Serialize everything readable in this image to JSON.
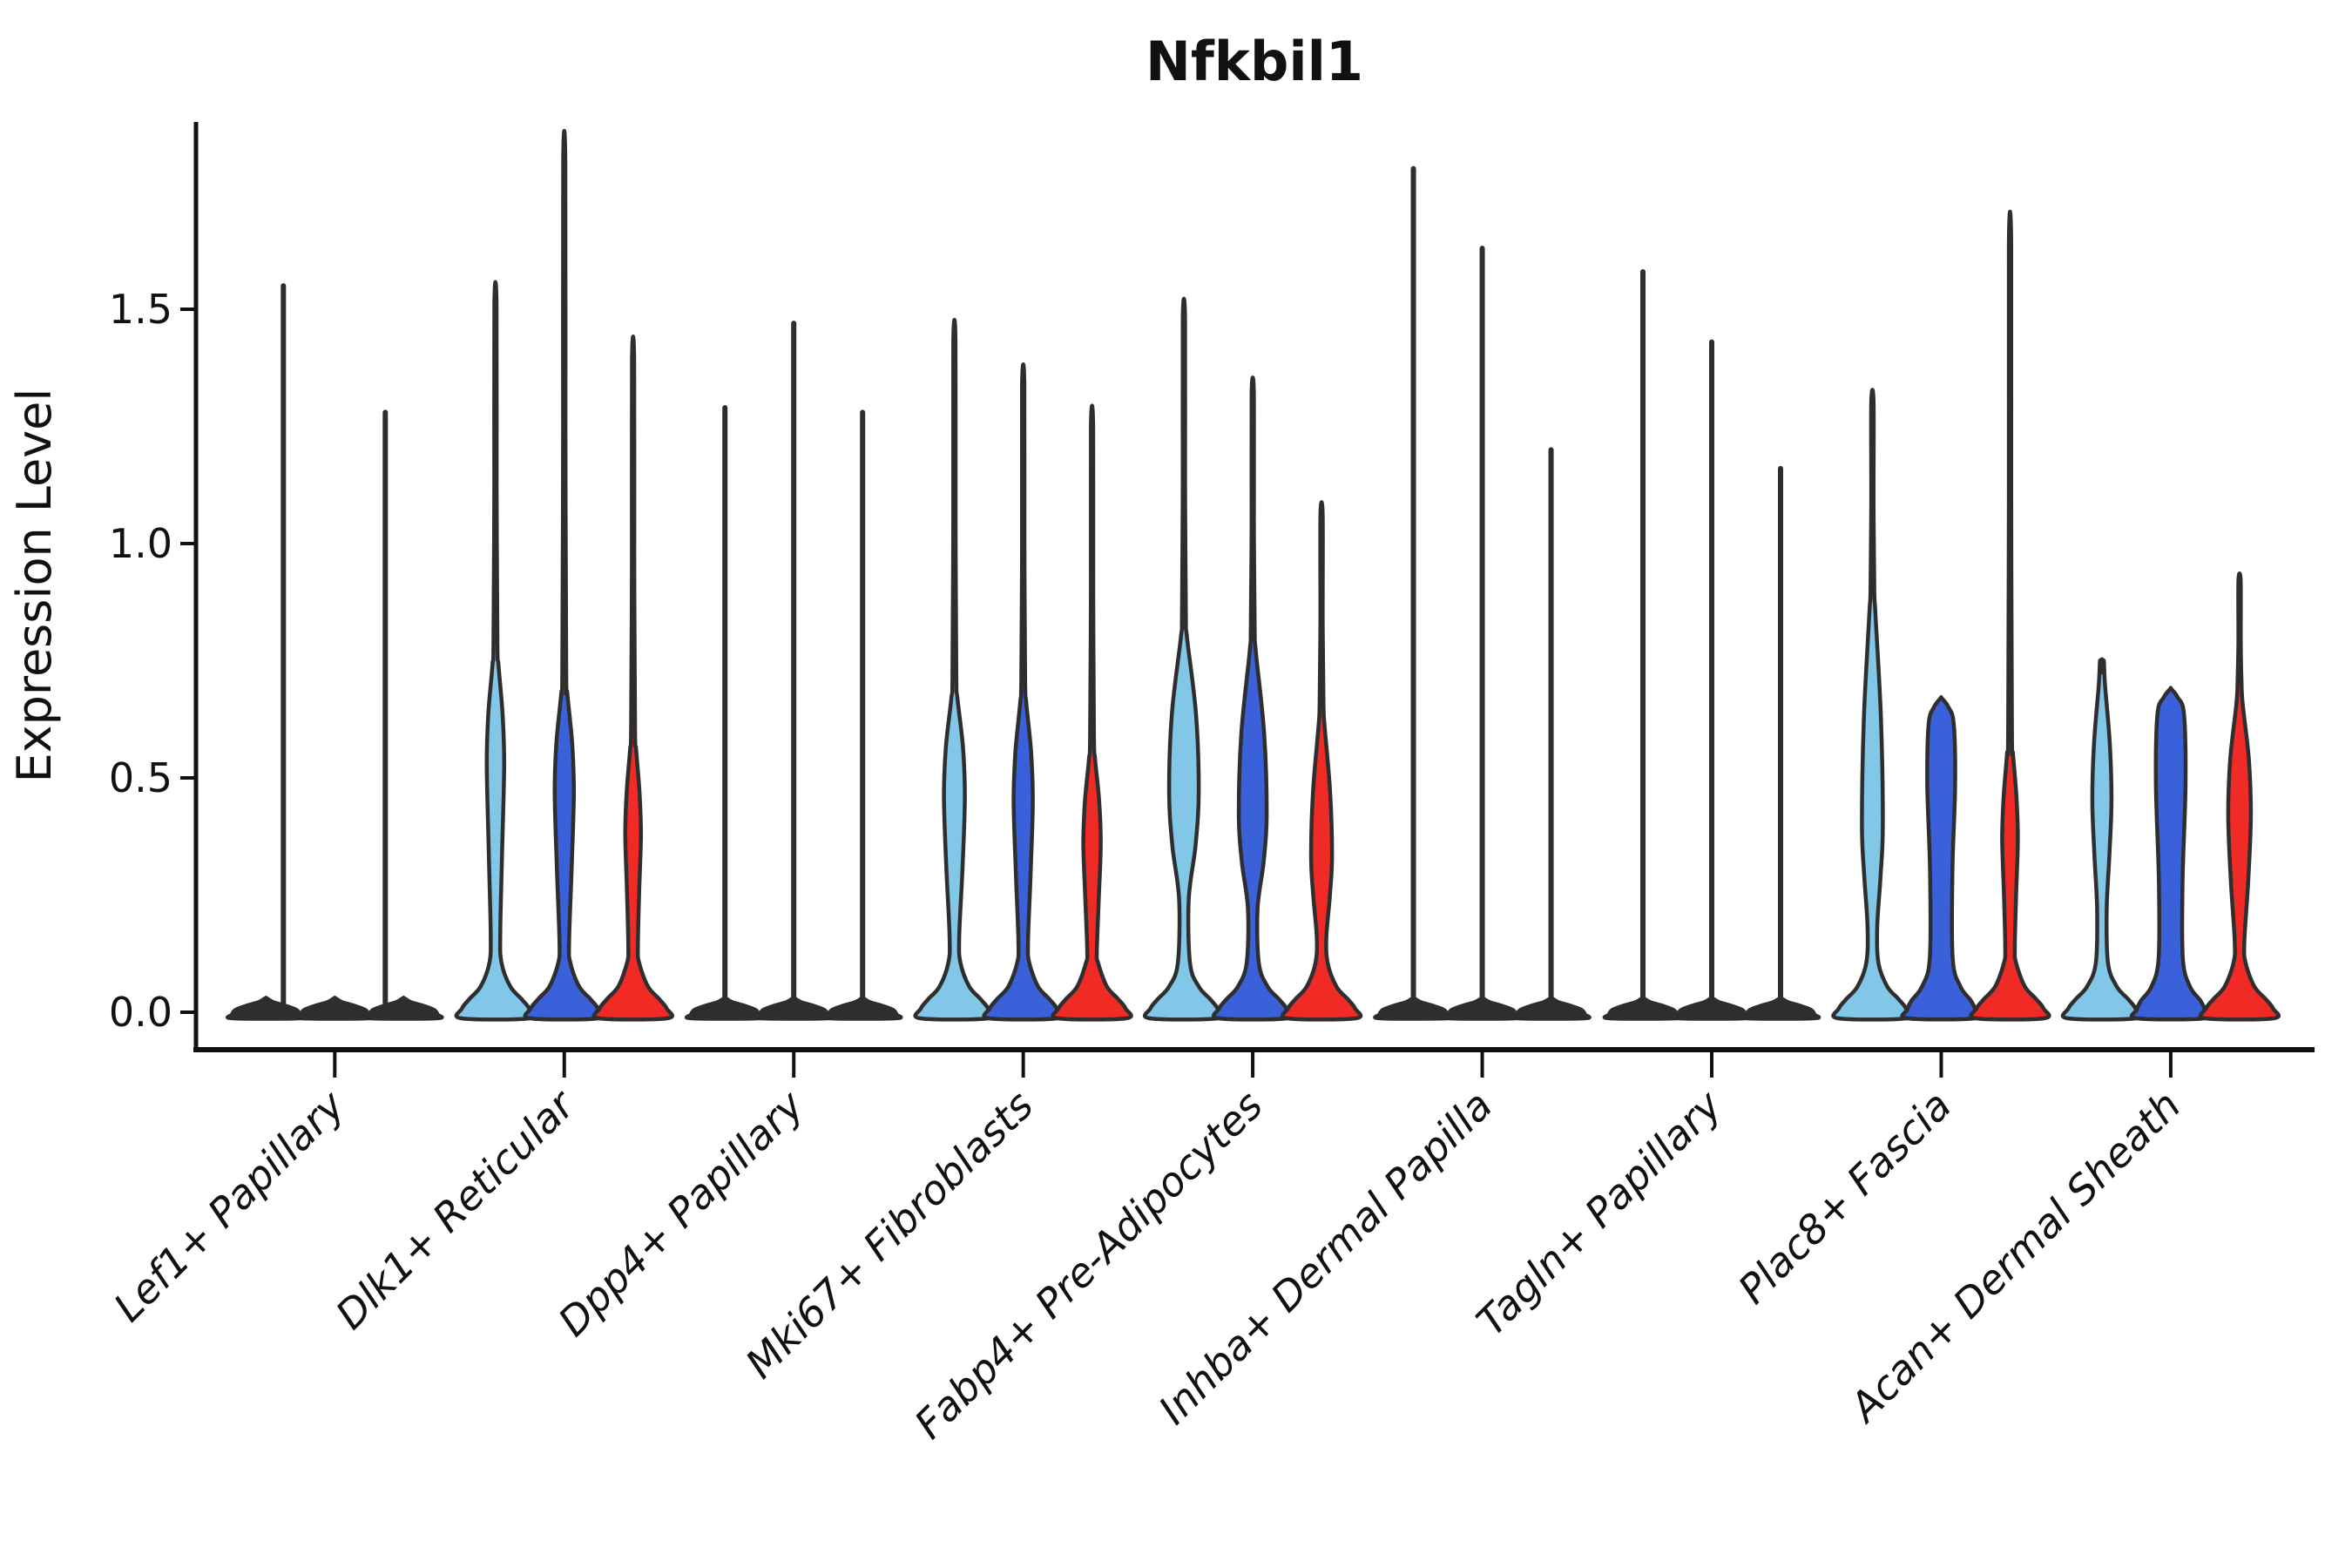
{
  "title_label": "Nfkbil1",
  "axis_label": "Expression Level",
  "chart_data": {
    "type": "violin",
    "title": "Nfkbil1",
    "ylabel": "Expression Level",
    "xlabel": "",
    "ylim": [
      -0.08,
      1.9
    ],
    "yticks": [
      0.0,
      0.5,
      1.0,
      1.5
    ],
    "ytick_labels": [
      "0.0",
      "0.5",
      "1.0",
      "1.5"
    ],
    "grid": false,
    "legend": "none",
    "series_colors": [
      "#82C7E8",
      "#3A60DA",
      "#F02B26"
    ],
    "outline_color": "#2E2E2E",
    "axis_color": "#111111",
    "categories": [
      "Lef1+ Papillary",
      "Dlk1+ Reticular",
      "Dpp4+ Papillary",
      "Mki67+ Fibroblasts",
      "Fabp4+ Pre-Adipocytes",
      "Inhba+ Dermal Papilla",
      "Tagln+ Papillary",
      "Plac8+ Fascia",
      "Acan+ Dermal Sheath"
    ],
    "groups": [
      {
        "category": "Lef1+ Papillary",
        "violins": [
          {
            "kind": "flat",
            "color_index": 0,
            "spike": 1.55,
            "spike_dx": 20
          },
          {
            "kind": "flat",
            "color_index": 1,
            "spike": 1.28,
            "spike_dx": 58
          },
          {
            "kind": "flat",
            "color_index": 2,
            "spike": null,
            "spike_dx": 0
          }
        ]
      },
      {
        "category": "Dlk1+ Reticular",
        "violins": [
          {
            "kind": "body",
            "color_index": 0,
            "spike": 1.51,
            "body_top": 0.74,
            "bulge": 0.53,
            "bulge_hw": 10,
            "waist": 0.17
          },
          {
            "kind": "body",
            "color_index": 1,
            "spike": 1.81,
            "body_top": 0.68,
            "bulge": 0.47,
            "bulge_hw": 11,
            "waist": 0.15
          },
          {
            "kind": "body",
            "color_index": 2,
            "spike": 1.39,
            "body_top": 0.56,
            "bulge": 0.38,
            "bulge_hw": 9,
            "waist": 0.14
          }
        ]
      },
      {
        "category": "Dpp4+ Papillary",
        "violins": [
          {
            "kind": "flat",
            "color_index": 0,
            "spike": 1.29,
            "spike_dx": 0
          },
          {
            "kind": "flat",
            "color_index": 1,
            "spike": 1.47,
            "spike_dx": 0
          },
          {
            "kind": "flat",
            "color_index": 2,
            "spike": 1.28,
            "spike_dx": 0
          }
        ]
      },
      {
        "category": "Mki67+ Fibroblasts",
        "violins": [
          {
            "kind": "body",
            "color_index": 0,
            "spike": 1.43,
            "body_top": 0.67,
            "bulge": 0.46,
            "bulge_hw": 12,
            "waist": 0.16
          },
          {
            "kind": "body",
            "color_index": 1,
            "spike": 1.34,
            "body_top": 0.66,
            "bulge": 0.45,
            "bulge_hw": 11,
            "waist": 0.15
          },
          {
            "kind": "body",
            "color_index": 2,
            "spike": 1.25,
            "body_top": 0.54,
            "bulge": 0.36,
            "bulge_hw": 10,
            "waist": 0.13
          }
        ]
      },
      {
        "category": "Fabp4+ Pre-Adipocytes",
        "violins": [
          {
            "kind": "body",
            "color_index": 0,
            "spike": 1.48,
            "body_top": 0.8,
            "bulge": 0.47,
            "bulge_hw": 17,
            "waist": 0.24
          },
          {
            "kind": "body",
            "color_index": 1,
            "spike": 1.32,
            "body_top": 0.77,
            "bulge": 0.42,
            "bulge_hw": 16,
            "waist": 0.22
          },
          {
            "kind": "body",
            "color_index": 2,
            "spike": 1.06,
            "body_top": 0.61,
            "bulge": 0.33,
            "bulge_hw": 12,
            "waist": 0.16
          }
        ]
      },
      {
        "category": "Inhba+ Dermal Papilla",
        "violins": [
          {
            "kind": "flat",
            "color_index": 0,
            "spike": 1.8,
            "spike_dx": 0
          },
          {
            "kind": "flat",
            "color_index": 1,
            "spike": 1.63,
            "spike_dx": 0
          },
          {
            "kind": "flat",
            "color_index": 2,
            "spike": 1.2,
            "spike_dx": 0
          }
        ]
      },
      {
        "category": "Tagln+ Papillary",
        "violins": [
          {
            "kind": "flat",
            "color_index": 0,
            "spike": 1.58,
            "spike_dx": 0
          },
          {
            "kind": "flat",
            "color_index": 1,
            "spike": 1.43,
            "spike_dx": 0
          },
          {
            "kind": "flat",
            "color_index": 2,
            "spike": 1.16,
            "spike_dx": 0
          }
        ]
      },
      {
        "category": "Plac8+ Fascia",
        "violins": [
          {
            "kind": "body",
            "color_index": 0,
            "spike": 1.3,
            "body_top": 0.85,
            "bulge": 0.4,
            "bulge_hw": 12,
            "waist": 0.18
          },
          {
            "kind": "dome",
            "color_index": 1,
            "top": 0.67,
            "hw": 16,
            "waist": 0.3
          },
          {
            "kind": "body",
            "color_index": 2,
            "spike": 1.64,
            "body_top": 0.55,
            "bulge": 0.37,
            "bulge_hw": 9,
            "waist": 0.14
          }
        ]
      },
      {
        "category": "Acan+ Dermal Sheath",
        "violins": [
          {
            "kind": "body",
            "color_index": 0,
            "spike": 0.75,
            "body_top": 0.7,
            "bulge": 0.45,
            "bulge_hw": 11,
            "waist": 0.22
          },
          {
            "kind": "dome",
            "color_index": 1,
            "top": 0.69,
            "hw": 17,
            "waist": 0.28
          },
          {
            "kind": "body",
            "color_index": 2,
            "spike": 0.92,
            "body_top": 0.66,
            "bulge": 0.42,
            "bulge_hw": 13,
            "waist": 0.15
          }
        ]
      }
    ]
  }
}
